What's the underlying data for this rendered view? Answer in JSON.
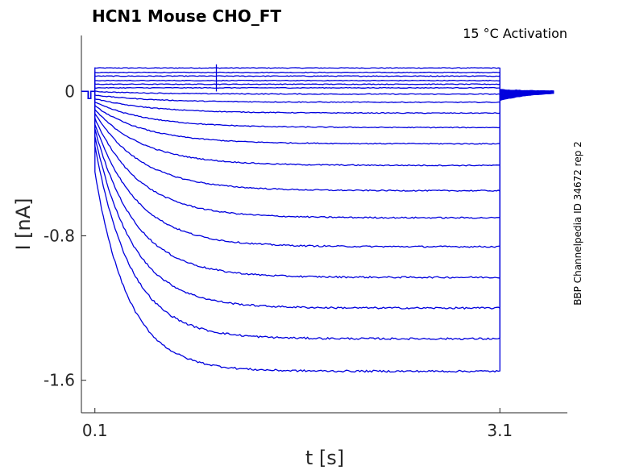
{
  "chart_data": {
    "type": "line",
    "title": "HCN1  Mouse  CHO_FT",
    "subtitle": "15 °C  Activation",
    "side_label": "BBP Channelpedia ID 34672 rep 2",
    "xlabel": "t [s]",
    "ylabel": "I [nA]",
    "xlim": [
      0.0,
      3.6
    ],
    "ylim": [
      -1.78,
      0.31
    ],
    "xticks": [
      "0.1",
      "3.1"
    ],
    "yticks": [
      "0",
      "-0.8",
      "-1.6"
    ],
    "step_start_s": 0.1,
    "step_end_s": 3.1,
    "tail_end_s": 3.5,
    "series_color": "#0000dd",
    "sweeps": [
      {
        "initial": 0.13,
        "steady": 0.13
      },
      {
        "initial": 0.105,
        "steady": 0.105
      },
      {
        "initial": 0.085,
        "steady": 0.085
      },
      {
        "initial": 0.06,
        "steady": 0.06
      },
      {
        "initial": 0.04,
        "steady": 0.04
      },
      {
        "initial": 0.02,
        "steady": 0.02
      },
      {
        "initial": 0.0,
        "steady": -0.015
      },
      {
        "initial": -0.02,
        "steady": -0.06
      },
      {
        "initial": -0.04,
        "steady": -0.12
      },
      {
        "initial": -0.06,
        "steady": -0.2
      },
      {
        "initial": -0.08,
        "steady": -0.29
      },
      {
        "initial": -0.1,
        "steady": -0.41
      },
      {
        "initial": -0.12,
        "steady": -0.55
      },
      {
        "initial": -0.15,
        "steady": -0.7
      },
      {
        "initial": -0.18,
        "steady": -0.86
      },
      {
        "initial": -0.21,
        "steady": -1.03
      },
      {
        "initial": -0.25,
        "steady": -1.2
      },
      {
        "initial": -0.3,
        "steady": -1.37
      },
      {
        "initial": -0.45,
        "steady": -1.55
      }
    ]
  }
}
